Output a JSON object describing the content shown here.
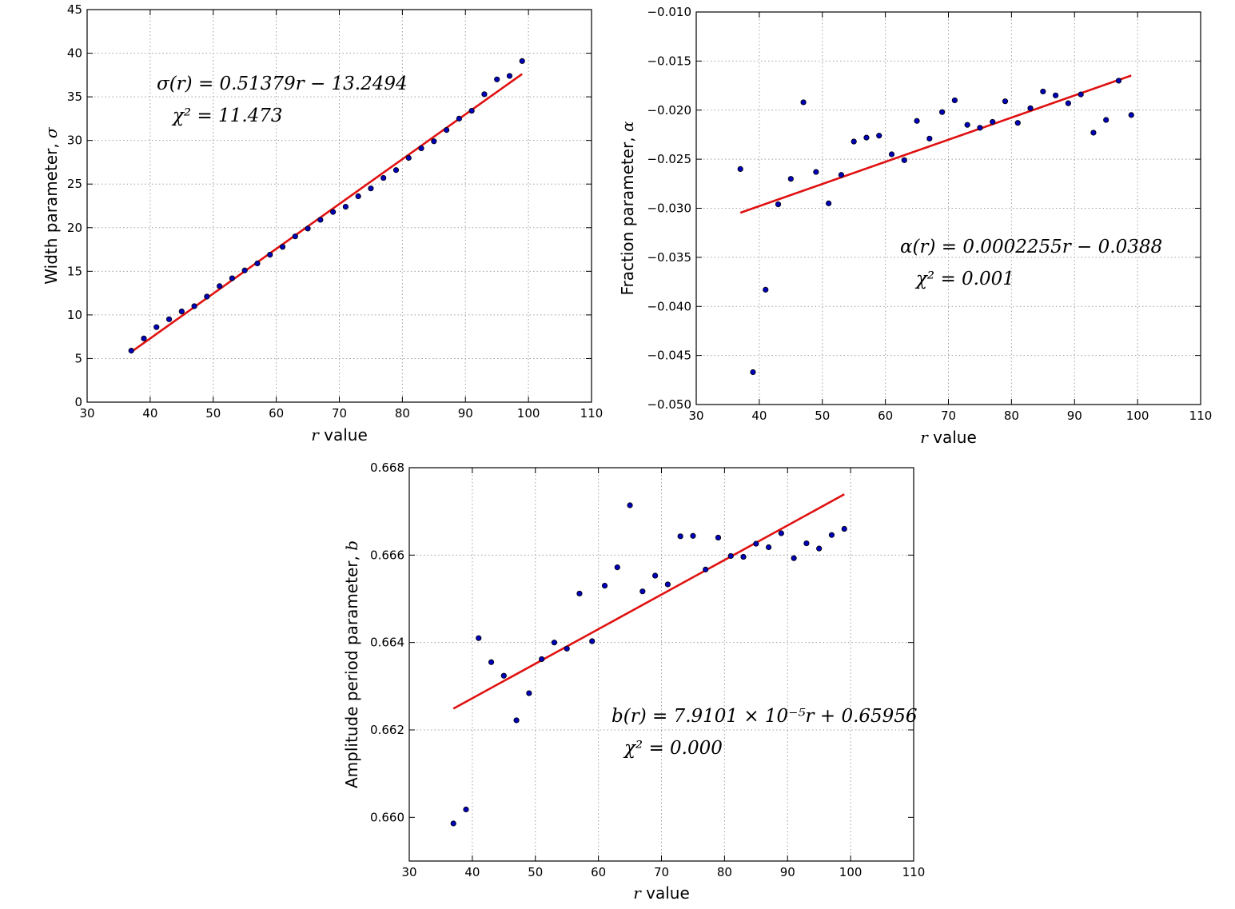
{
  "chart_data": [
    {
      "type": "scatter",
      "id": "width",
      "xlabel_var": "r",
      "xlabel_text": " value",
      "ylabel_text": "Width parameter, ",
      "ylabel_var": "σ",
      "xlim": [
        30,
        110
      ],
      "ylim": [
        0,
        45
      ],
      "xticks": [
        30,
        40,
        50,
        60,
        70,
        80,
        90,
        100,
        110
      ],
      "yticks": [
        0,
        5,
        10,
        15,
        20,
        25,
        30,
        35,
        40,
        45
      ],
      "ytick_decimals": 0,
      "annotation_line1": "σ(r) = 0.51379r − 13.2494",
      "annotation_line2": "χ² = 11.473",
      "fit": {
        "slope": 0.51379,
        "intercept": -13.2494,
        "x_start": 37,
        "x_end": 99
      },
      "x": [
        37,
        39,
        41,
        43,
        45,
        47,
        49,
        51,
        53,
        55,
        57,
        59,
        61,
        63,
        65,
        67,
        69,
        71,
        73,
        75,
        77,
        79,
        81,
        83,
        85,
        87,
        89,
        91,
        93,
        95,
        97,
        99
      ],
      "y": [
        5.9,
        7.3,
        8.6,
        9.5,
        10.4,
        11.0,
        12.1,
        13.3,
        14.2,
        15.1,
        15.9,
        16.9,
        17.8,
        19.0,
        19.9,
        20.9,
        21.8,
        22.4,
        23.6,
        24.5,
        25.7,
        26.6,
        28.0,
        29.1,
        29.9,
        31.2,
        32.5,
        33.4,
        35.3,
        37.0,
        37.4,
        39.1
      ]
    },
    {
      "type": "scatter",
      "id": "fraction",
      "xlabel_var": "r",
      "xlabel_text": " value",
      "ylabel_text": "Fraction parameter, ",
      "ylabel_var": "α",
      "xlim": [
        30,
        110
      ],
      "ylim": [
        -0.05,
        -0.01
      ],
      "xticks": [
        30,
        40,
        50,
        60,
        70,
        80,
        90,
        100,
        110
      ],
      "yticks": [
        -0.05,
        -0.045,
        -0.04,
        -0.035,
        -0.03,
        -0.025,
        -0.02,
        -0.015,
        -0.01
      ],
      "ytick_decimals": 3,
      "annotation_line1": "α(r) = 0.0002255r − 0.0388",
      "annotation_line2": "χ² = 0.001",
      "fit": {
        "slope": 0.0002255,
        "intercept": -0.0388,
        "x_start": 37,
        "x_end": 99
      },
      "x": [
        37,
        39,
        41,
        43,
        45,
        47,
        49,
        51,
        53,
        55,
        57,
        59,
        61,
        63,
        65,
        67,
        69,
        71,
        73,
        75,
        77,
        79,
        81,
        83,
        85,
        87,
        89,
        91,
        93,
        95,
        97,
        99
      ],
      "y": [
        -0.026,
        -0.0467,
        -0.0383,
        -0.0296,
        -0.027,
        -0.0192,
        -0.0263,
        -0.0295,
        -0.0266,
        -0.0232,
        -0.0228,
        -0.0226,
        -0.0245,
        -0.0251,
        -0.0211,
        -0.0229,
        -0.0202,
        -0.019,
        -0.0215,
        -0.0218,
        -0.0212,
        -0.0191,
        -0.0213,
        -0.0198,
        -0.0181,
        -0.0185,
        -0.0193,
        -0.0184,
        -0.0223,
        -0.021,
        -0.017,
        -0.0205
      ]
    },
    {
      "type": "scatter",
      "id": "amplitude",
      "xlabel_var": "r",
      "xlabel_text": " value",
      "ylabel_text": "Amplitude period parameter, ",
      "ylabel_var": "b",
      "xlim": [
        30,
        110
      ],
      "ylim": [
        0.659,
        0.668
      ],
      "xticks": [
        30,
        40,
        50,
        60,
        70,
        80,
        90,
        100,
        110
      ],
      "yticks": [
        0.66,
        0.662,
        0.664,
        0.666,
        0.668
      ],
      "ytick_decimals": 3,
      "annotation_line1": "b(r) = 7.9101 × 10⁻⁵r + 0.65956",
      "annotation_line2": "χ² = 0.000",
      "fit": {
        "slope": 7.9101e-05,
        "intercept": 0.65956,
        "x_start": 37,
        "x_end": 99
      },
      "x": [
        37,
        39,
        41,
        43,
        45,
        47,
        49,
        51,
        53,
        55,
        57,
        59,
        61,
        63,
        65,
        67,
        69,
        71,
        73,
        75,
        77,
        79,
        81,
        83,
        85,
        87,
        89,
        91,
        93,
        95,
        97,
        99
      ],
      "y": [
        0.65986,
        0.66018,
        0.6641,
        0.66355,
        0.66324,
        0.66222,
        0.66284,
        0.66362,
        0.664,
        0.66386,
        0.66512,
        0.66403,
        0.6653,
        0.66572,
        0.66714,
        0.66517,
        0.66553,
        0.66533,
        0.66643,
        0.66644,
        0.66567,
        0.6664,
        0.66598,
        0.66596,
        0.66626,
        0.66618,
        0.6665,
        0.66593,
        0.66627,
        0.66615,
        0.66646,
        0.6666
      ]
    }
  ]
}
